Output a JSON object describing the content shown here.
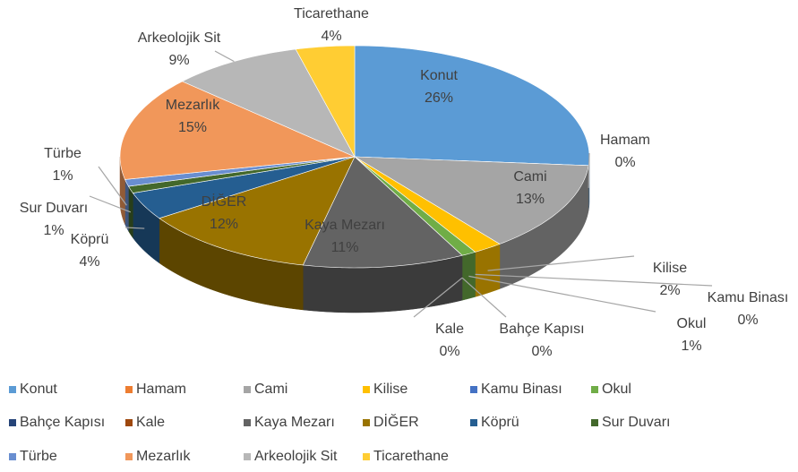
{
  "chart_data": {
    "type": "pie3d",
    "categories": [
      "Konut",
      "Hamam",
      "Cami",
      "Kilise",
      "Kamu Binası",
      "Okul",
      "Bahçe Kapısı",
      "Kale",
      "Kaya Mezarı",
      "DİĞER",
      "Köprü",
      "Sur Duvarı",
      "Türbe",
      "Mezarlık",
      "Arkeolojik Sit",
      "Ticarethane"
    ],
    "values": [
      26,
      0,
      13,
      2,
      0,
      1,
      0,
      0,
      11,
      12,
      4,
      1,
      1,
      15,
      9,
      4
    ],
    "value_labels": [
      "26%",
      "0%",
      "13%",
      "2%",
      "0%",
      "1%",
      "0%",
      "0%",
      "11%",
      "12%",
      "4%",
      "1%",
      "1%",
      "15%",
      "9%",
      "4%"
    ],
    "colors": [
      "#5b9bd5",
      "#ed7d31",
      "#a5a5a5",
      "#ffc000",
      "#4472c4",
      "#70ad47",
      "#264478",
      "#9e480e",
      "#636363",
      "#997300",
      "#255e91",
      "#43682b",
      "#698ed0",
      "#f1975a",
      "#b7b7b7",
      "#ffcd33"
    ],
    "legend": "bottom"
  }
}
